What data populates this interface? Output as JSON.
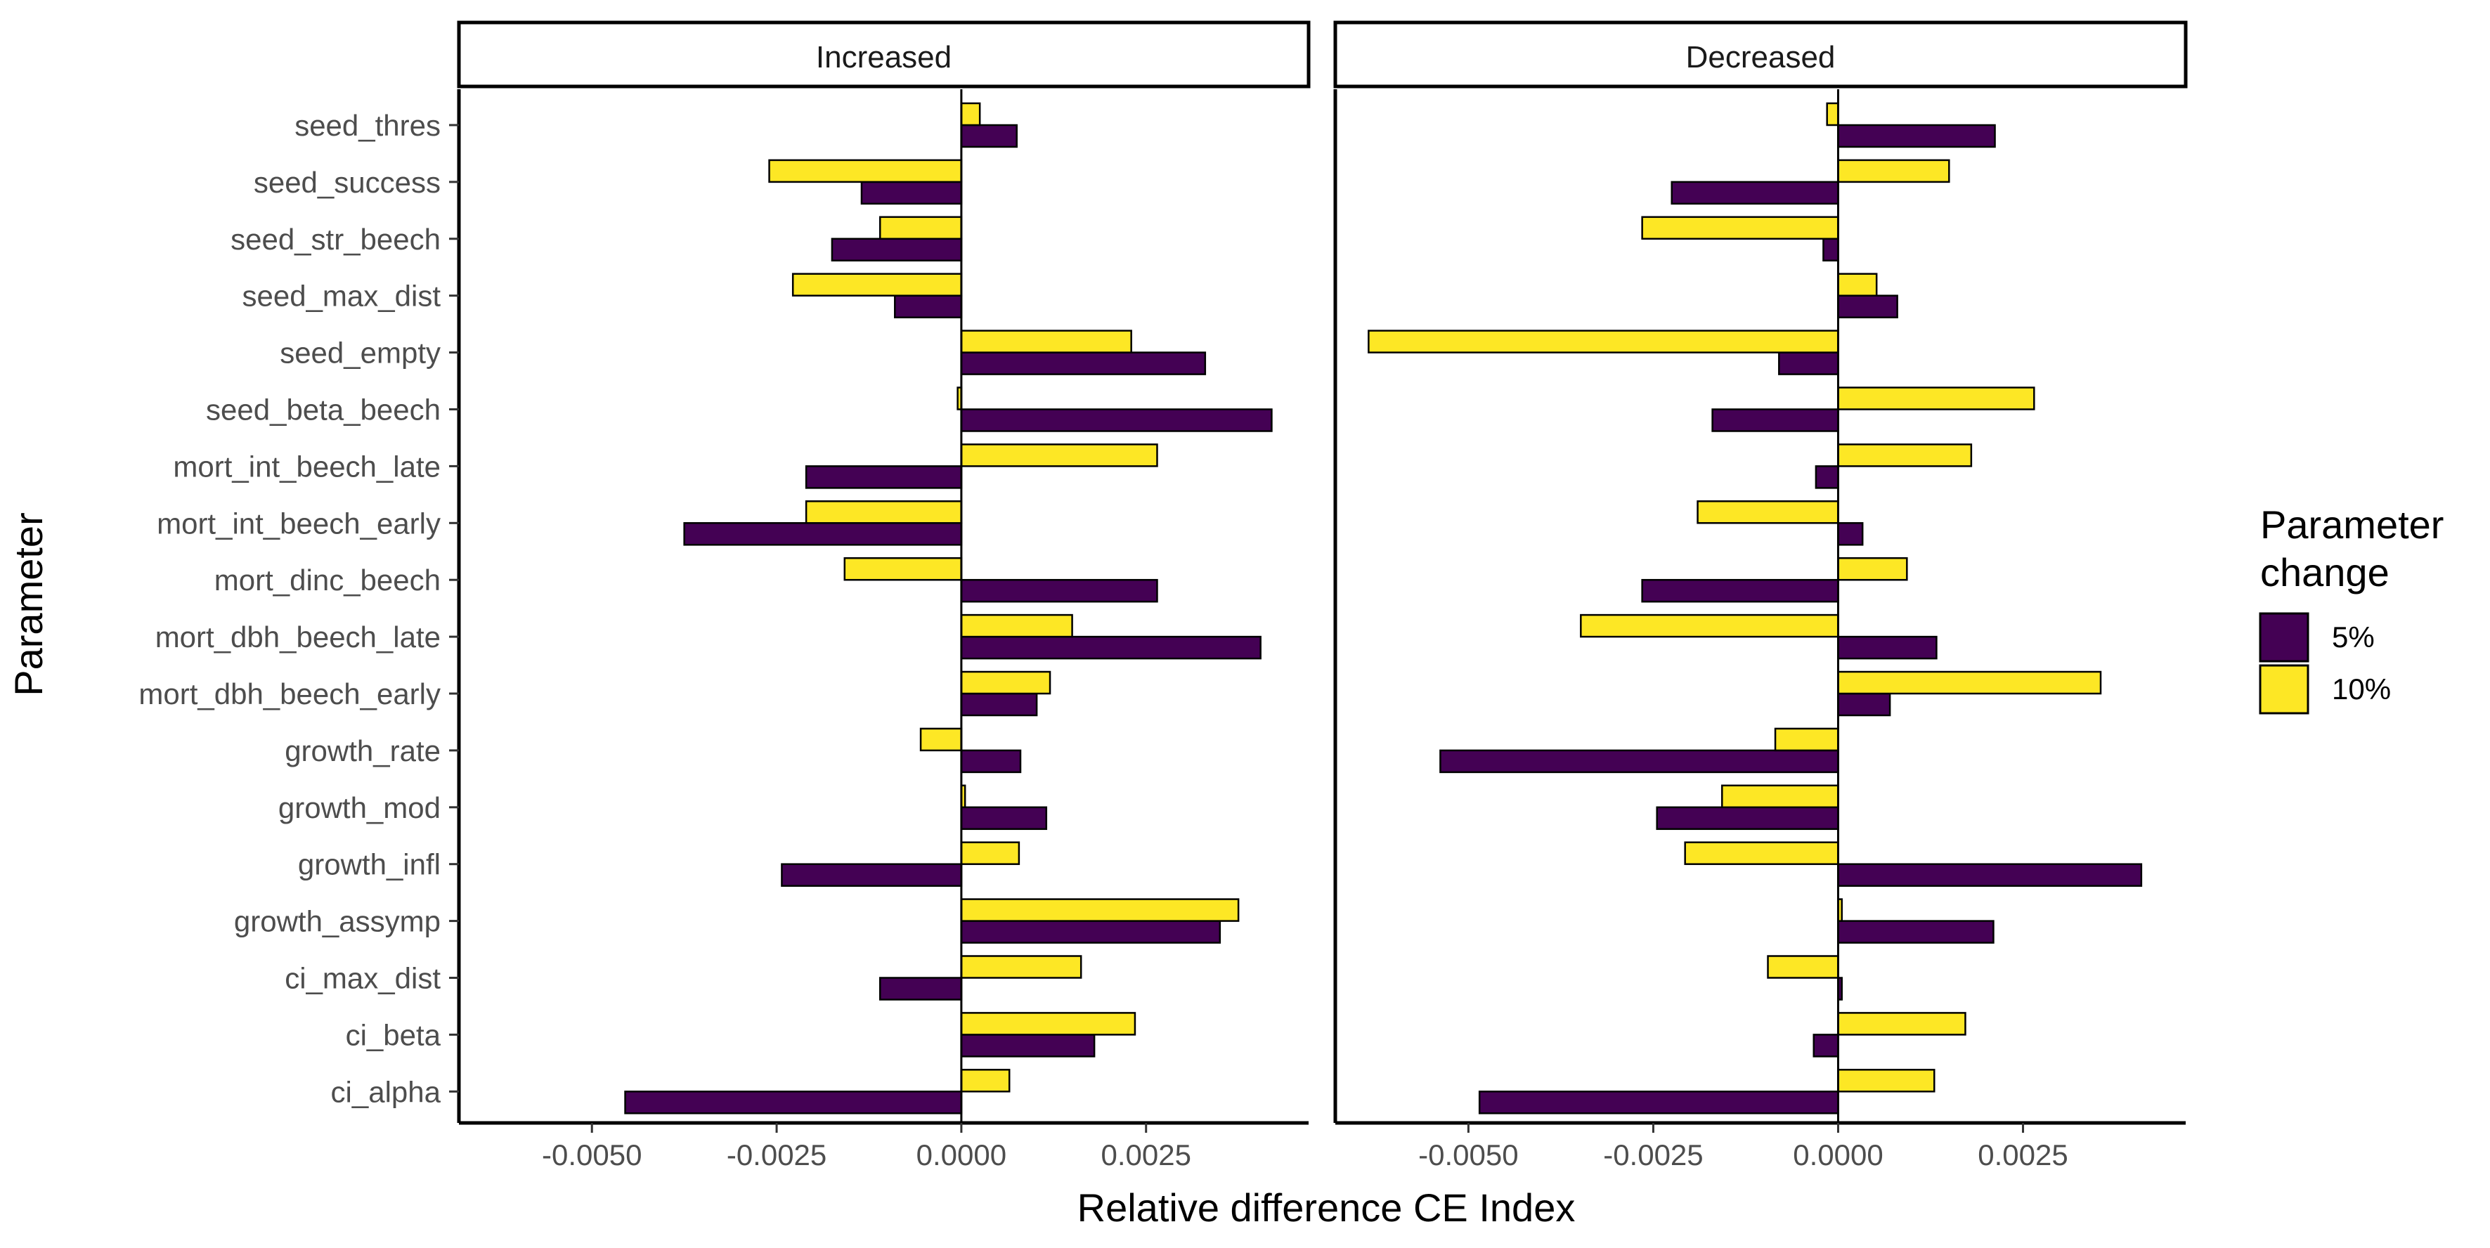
{
  "chart_data": {
    "type": "bar",
    "orientation": "horizontal",
    "xlabel": "Relative difference CE Index",
    "ylabel": "Parameter",
    "xlim": [
      -0.0068,
      0.0047
    ],
    "x_ticks": [
      {
        "value": -0.005,
        "label": "-0.0050"
      },
      {
        "value": -0.0025,
        "label": "-0.0025"
      },
      {
        "value": 0,
        "label": "0.0000"
      },
      {
        "value": 0.0025,
        "label": "0.0025"
      }
    ],
    "grid": false,
    "categories": [
      "seed_thres",
      "seed_success",
      "seed_str_beech",
      "seed_max_dist",
      "seed_empty",
      "seed_beta_beech",
      "mort_int_beech_late",
      "mort_int_beech_early",
      "mort_dinc_beech",
      "mort_dbh_beech_late",
      "mort_dbh_beech_early",
      "growth_rate",
      "growth_mod",
      "growth_infl",
      "growth_assymp",
      "ci_max_dist",
      "ci_beta",
      "ci_alpha"
    ],
    "legend": {
      "title": "Parameter change",
      "position": "right",
      "entries": [
        {
          "label": "5%",
          "color": "#440154"
        },
        {
          "label": "10%",
          "color": "#FDE725"
        }
      ]
    },
    "panels": [
      {
        "label": "Increased",
        "series": [
          {
            "name": "5%",
            "color": "#440154",
            "values": [
              0.00075,
              -0.00135,
              -0.00175,
              -0.0009,
              0.0033,
              0.0042,
              -0.0021,
              -0.00375,
              0.00265,
              0.00405,
              0.00102,
              0.0008,
              0.00115,
              -0.00243,
              0.0035,
              -0.0011,
              0.0018,
              -0.00455
            ]
          },
          {
            "name": "10%",
            "color": "#FDE725",
            "values": [
              0.00025,
              -0.0026,
              -0.0011,
              -0.00228,
              0.0023,
              -5e-05,
              0.00265,
              -0.0021,
              -0.00158,
              0.0015,
              0.0012,
              -0.00055,
              5e-05,
              0.00078,
              0.00375,
              0.00162,
              0.00235,
              0.00065
            ]
          }
        ]
      },
      {
        "label": "Decreased",
        "series": [
          {
            "name": "5%",
            "color": "#440154",
            "values": [
              0.00212,
              -0.00225,
              -0.0002,
              0.0008,
              -0.0008,
              -0.0017,
              -0.0003,
              0.00033,
              -0.00265,
              0.00133,
              0.0007,
              -0.00538,
              -0.00245,
              0.0041,
              0.0021,
              5e-05,
              -0.00033,
              -0.00485
            ]
          },
          {
            "name": "10%",
            "color": "#FDE725",
            "values": [
              -0.00015,
              0.0015,
              -0.00265,
              0.00052,
              -0.00635,
              0.00265,
              0.0018,
              -0.0019,
              0.00093,
              -0.00348,
              0.00355,
              -0.00085,
              -0.00157,
              -0.00207,
              5e-05,
              -0.00095,
              0.00172,
              0.0013
            ]
          }
        ]
      }
    ]
  }
}
